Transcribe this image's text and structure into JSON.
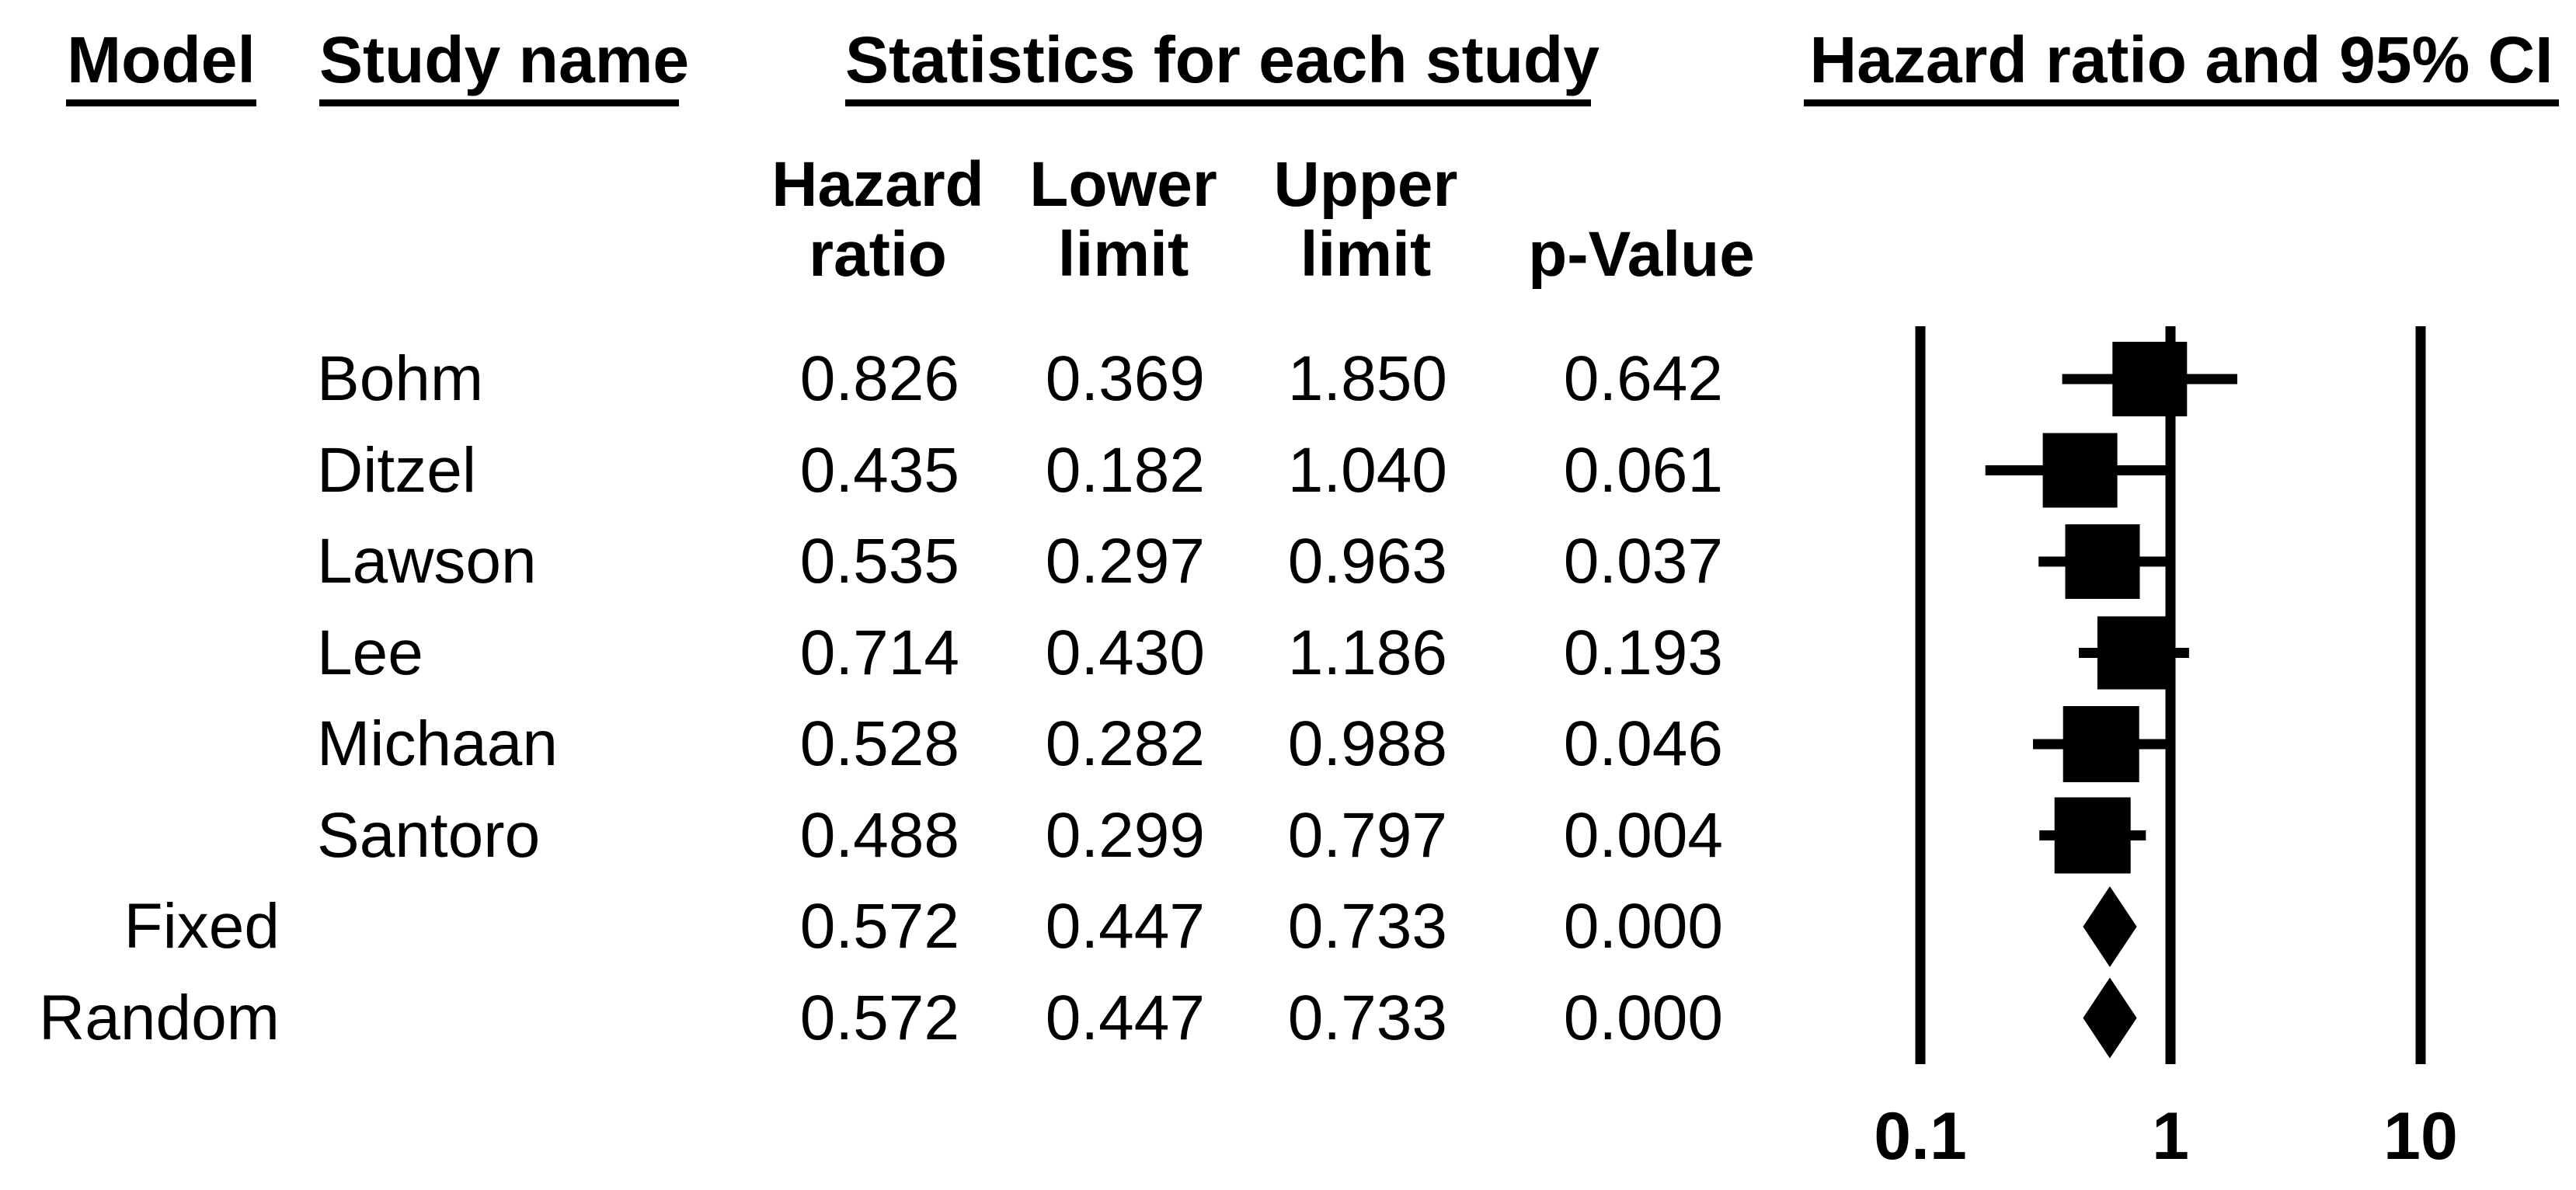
{
  "headers": {
    "model": "Model",
    "study_name": "Study name",
    "statistics": "Statistics for each study",
    "plot": "Hazard ratio and 95% CI",
    "hazard_ratio_line1": "Hazard",
    "hazard_ratio_line2": "ratio",
    "lower_limit_line1": "Lower",
    "lower_limit_line2": "limit",
    "upper_limit_line1": "Upper",
    "upper_limit_line2": "limit",
    "p_value": "p-Value"
  },
  "table": {
    "rows": [
      {
        "model": "",
        "study": "Bohm",
        "hr": "0.826",
        "lower": "0.369",
        "upper": "1.850",
        "p": "0.642"
      },
      {
        "model": "",
        "study": "Ditzel",
        "hr": "0.435",
        "lower": "0.182",
        "upper": "1.040",
        "p": "0.061"
      },
      {
        "model": "",
        "study": "Lawson",
        "hr": "0.535",
        "lower": "0.297",
        "upper": "0.963",
        "p": "0.037"
      },
      {
        "model": "",
        "study": "Lee",
        "hr": "0.714",
        "lower": "0.430",
        "upper": "1.186",
        "p": "0.193"
      },
      {
        "model": "",
        "study": "Michaan",
        "hr": "0.528",
        "lower": "0.282",
        "upper": "0.988",
        "p": "0.046"
      },
      {
        "model": "",
        "study": "Santoro",
        "hr": "0.488",
        "lower": "0.299",
        "upper": "0.797",
        "p": "0.004"
      },
      {
        "model": "Fixed",
        "study": "",
        "hr": "0.572",
        "lower": "0.447",
        "upper": "0.733",
        "p": "0.000"
      },
      {
        "model": "Random",
        "study": "",
        "hr": "0.572",
        "lower": "0.447",
        "upper": "0.733",
        "p": "0.000"
      }
    ]
  },
  "chart_data": {
    "type": "scatter",
    "variant": "forest_plot",
    "title": "Hazard ratio and 95% CI",
    "x_scale": "log10",
    "x_range": [
      0.1,
      10
    ],
    "x_ticks": [
      0.1,
      1,
      10
    ],
    "x_tick_labels": [
      "0.1",
      "1",
      "10"
    ],
    "reference_lines": [
      0.1,
      1,
      10
    ],
    "marker_color": "#000000",
    "studies": [
      {
        "label": "Bohm",
        "hazard_ratio": 0.826,
        "ci_lower": 0.369,
        "ci_upper": 1.85,
        "p_value": 0.642,
        "marker": "square",
        "marker_size": 96
      },
      {
        "label": "Ditzel",
        "hazard_ratio": 0.435,
        "ci_lower": 0.182,
        "ci_upper": 1.04,
        "p_value": 0.061,
        "marker": "square",
        "marker_size": 96
      },
      {
        "label": "Lawson",
        "hazard_ratio": 0.535,
        "ci_lower": 0.297,
        "ci_upper": 0.963,
        "p_value": 0.037,
        "marker": "square",
        "marker_size": 96
      },
      {
        "label": "Lee",
        "hazard_ratio": 0.714,
        "ci_lower": 0.43,
        "ci_upper": 1.186,
        "p_value": 0.193,
        "marker": "square",
        "marker_size": 94
      },
      {
        "label": "Michaan",
        "hazard_ratio": 0.528,
        "ci_lower": 0.282,
        "ci_upper": 0.988,
        "p_value": 0.046,
        "marker": "square",
        "marker_size": 98
      },
      {
        "label": "Santoro",
        "hazard_ratio": 0.488,
        "ci_lower": 0.299,
        "ci_upper": 0.797,
        "p_value": 0.004,
        "marker": "square",
        "marker_size": 98
      },
      {
        "label": "Fixed",
        "hazard_ratio": 0.572,
        "ci_lower": 0.447,
        "ci_upper": 0.733,
        "p_value": 0.0,
        "marker": "diamond",
        "marker_size": 104
      },
      {
        "label": "Random",
        "hazard_ratio": 0.572,
        "ci_lower": 0.447,
        "ci_upper": 0.733,
        "p_value": 0.0,
        "marker": "diamond",
        "marker_size": 104
      }
    ]
  }
}
